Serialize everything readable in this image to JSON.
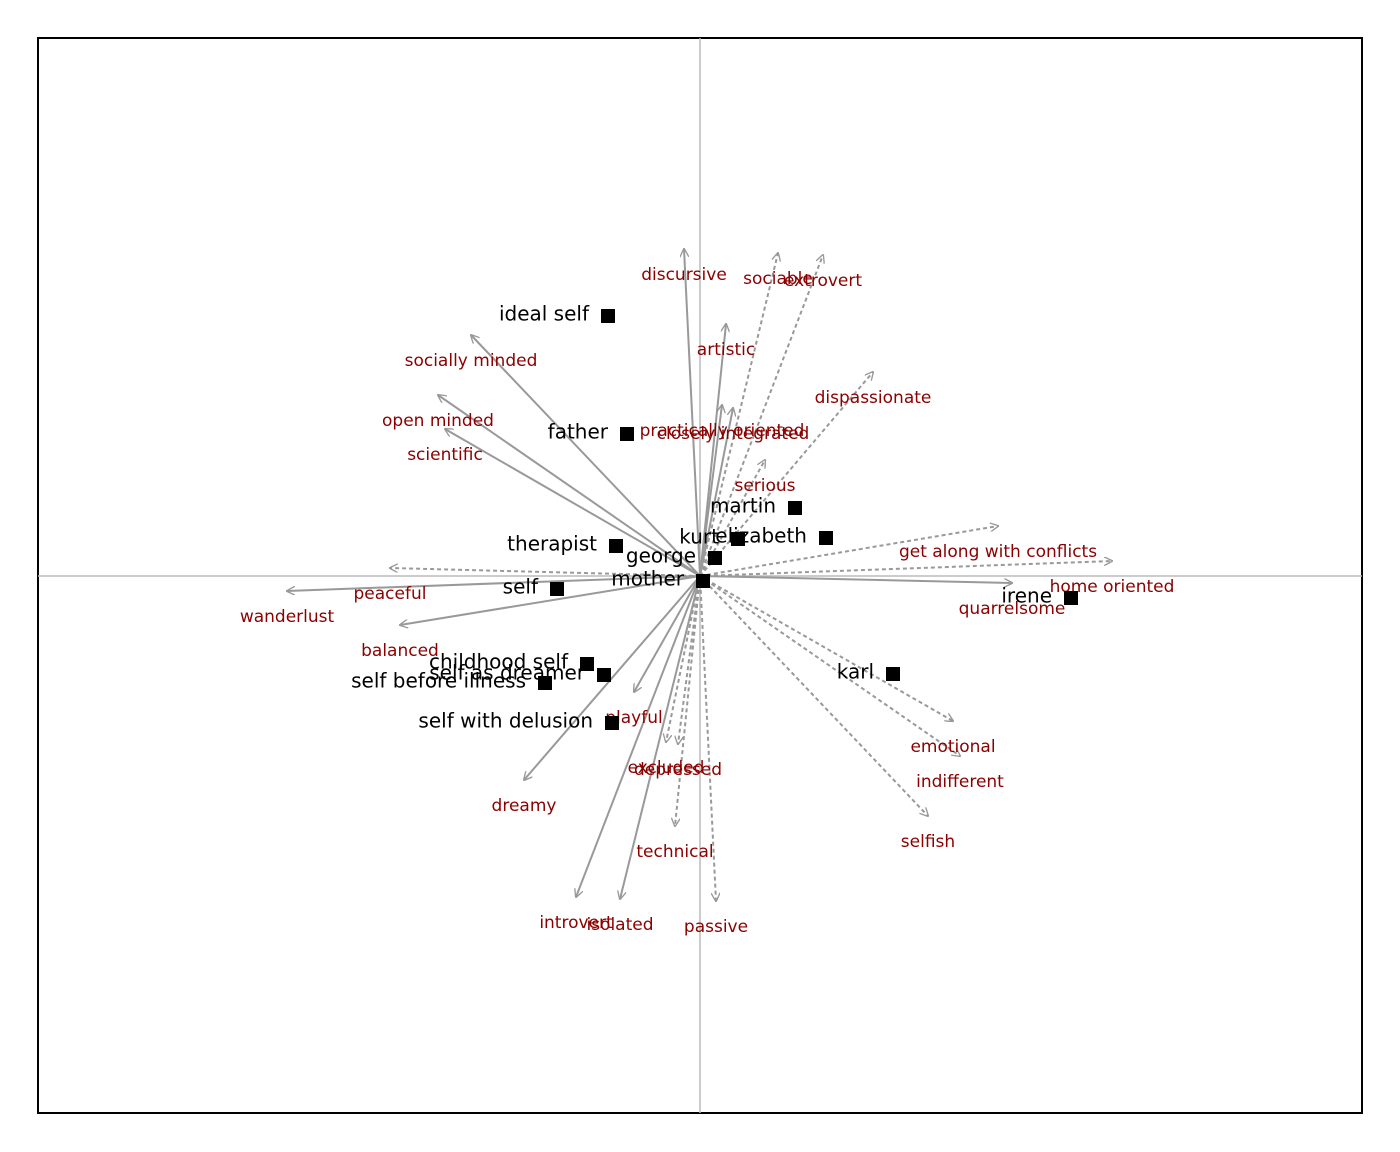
{
  "chart_data": {
    "type": "biplot",
    "xlim": [
      -6.62,
      6.62
    ],
    "ylim": [
      -5.37,
      5.38
    ],
    "axis_color": "#bbbbbb",
    "point_color": "#000000",
    "arrow_color": "#999999",
    "construct_label_color": "#8b0000",
    "points": [
      {
        "name": "ideal self",
        "x": -0.92,
        "y": 2.6
      },
      {
        "name": "father",
        "x": -0.73,
        "y": 1.42
      },
      {
        "name": "martin",
        "x": 0.95,
        "y": 0.68
      },
      {
        "name": "elizabeth",
        "x": 1.26,
        "y": 0.38
      },
      {
        "name": "kurt",
        "x": 0.38,
        "y": 0.37
      },
      {
        "name": "therapist",
        "x": -0.84,
        "y": 0.3
      },
      {
        "name": "george",
        "x": 0.15,
        "y": 0.18
      },
      {
        "name": "mother",
        "x": 0.03,
        "y": -0.05
      },
      {
        "name": "self",
        "x": -1.43,
        "y": -0.13
      },
      {
        "name": "irene",
        "x": 3.71,
        "y": -0.22
      },
      {
        "name": "childhood self",
        "x": -1.13,
        "y": -0.88
      },
      {
        "name": "self as dreamer",
        "x": -0.96,
        "y": -0.99
      },
      {
        "name": "self before illness",
        "x": -1.55,
        "y": -1.07
      },
      {
        "name": "karl",
        "x": 1.93,
        "y": -0.98
      },
      {
        "name": "self with delusion",
        "x": -0.88,
        "y": -1.47
      }
    ],
    "arrows": [
      {
        "name": "discursive",
        "x": -0.16,
        "y": 3.27,
        "style": "solid"
      },
      {
        "name": "artistic",
        "x": 0.26,
        "y": 2.52,
        "style": "solid"
      },
      {
        "name": "socially minded",
        "x": -2.29,
        "y": 2.41,
        "style": "solid"
      },
      {
        "name": "open minded",
        "x": -2.62,
        "y": 1.81,
        "style": "solid"
      },
      {
        "name": "scientific",
        "x": -2.55,
        "y": 1.47,
        "style": "solid"
      },
      {
        "name": "practically oriented",
        "x": 0.22,
        "y": 1.71,
        "style": "solid"
      },
      {
        "name": "closely integrated",
        "x": 0.33,
        "y": 1.68,
        "style": "solid"
      },
      {
        "name": "wanderlust",
        "x": -4.13,
        "y": -0.15,
        "style": "solid"
      },
      {
        "name": "balanced",
        "x": -3.0,
        "y": -0.49,
        "style": "solid"
      },
      {
        "name": "quarrelsome",
        "x": 3.12,
        "y": -0.07,
        "style": "solid"
      },
      {
        "name": "playful",
        "x": -0.66,
        "y": -1.16,
        "style": "solid"
      },
      {
        "name": "dreamy",
        "x": -1.76,
        "y": -2.04,
        "style": "solid"
      },
      {
        "name": "introvert",
        "x": -1.24,
        "y": -3.21,
        "style": "solid"
      },
      {
        "name": "isolated",
        "x": -0.8,
        "y": -3.23,
        "style": "solid"
      },
      {
        "name": "sociable",
        "x": 0.78,
        "y": 3.23,
        "style": "dashed"
      },
      {
        "name": "extrovert",
        "x": 1.23,
        "y": 3.21,
        "style": "dashed"
      },
      {
        "name": "dispassionate",
        "x": 1.73,
        "y": 2.04,
        "style": "dashed"
      },
      {
        "name": "serious",
        "x": 0.65,
        "y": 1.16,
        "style": "dashed"
      },
      {
        "name": "get along with conflicts",
        "x": 2.98,
        "y": 0.5,
        "style": "dashed"
      },
      {
        "name": "home oriented",
        "x": 4.12,
        "y": 0.15,
        "style": "dashed"
      },
      {
        "name": "peaceful",
        "x": -3.1,
        "y": 0.08,
        "style": "dashed"
      },
      {
        "name": "emotional",
        "x": 2.53,
        "y": -1.45,
        "style": "dashed"
      },
      {
        "name": "indifferent",
        "x": 2.6,
        "y": -1.8,
        "style": "dashed"
      },
      {
        "name": "selfish",
        "x": 2.28,
        "y": -2.4,
        "style": "dashed"
      },
      {
        "name": "excluded",
        "x": -0.34,
        "y": -1.66,
        "style": "dashed"
      },
      {
        "name": "depressed",
        "x": -0.22,
        "y": -1.68,
        "style": "dashed"
      },
      {
        "name": "technical",
        "x": -0.25,
        "y": -2.5,
        "style": "dashed"
      },
      {
        "name": "passive",
        "x": 0.16,
        "y": -3.25,
        "style": "dashed"
      }
    ]
  }
}
